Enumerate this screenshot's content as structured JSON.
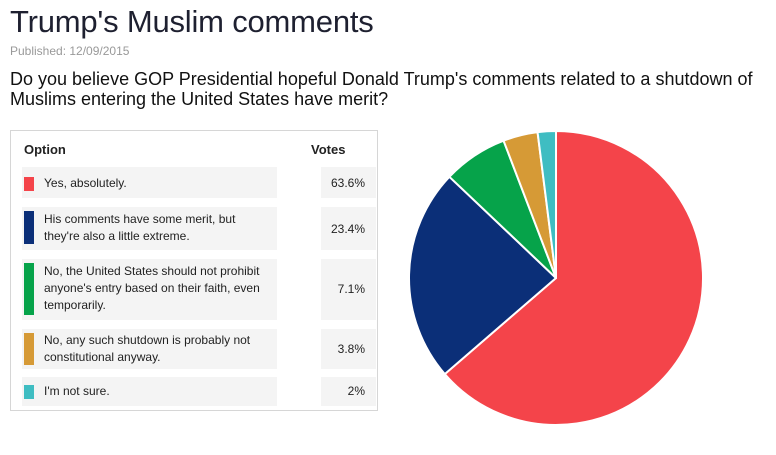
{
  "page": {
    "title": "Trump's Muslim comments",
    "published": "Published: 12/09/2015",
    "question": "Do you believe GOP Presidential hopeful Donald Trump's comments related to a shutdown of Muslims entering the United States have merit?"
  },
  "table": {
    "header_option": "Option",
    "header_votes": "Votes",
    "rows": [
      {
        "label": "Yes, absolutely.",
        "votes": "63.6%"
      },
      {
        "label": "His comments have some merit, but they're also a little extreme.",
        "votes": "23.4%"
      },
      {
        "label": "No, the United States should not prohibit anyone's entry based on their faith, even temporarily.",
        "votes": "7.1%"
      },
      {
        "label": "No, any such shutdown is probably not constitutional anyway.",
        "votes": "3.8%"
      },
      {
        "label": "I'm not sure.",
        "votes": "2%"
      }
    ]
  },
  "chart_data": {
    "type": "pie",
    "title": "",
    "categories": [
      "Yes, absolutely.",
      "His comments have some merit, but they're also a little extreme.",
      "No, the United States should not prohibit anyone's entry based on their faith, even temporarily.",
      "No, any such shutdown is probably not constitutional anyway.",
      "I'm not sure."
    ],
    "values": [
      63.6,
      23.4,
      7.1,
      3.8,
      2.0
    ],
    "colors": [
      "#f4444a",
      "#0b2f78",
      "#06a34a",
      "#d69a36",
      "#3fbdc2"
    ],
    "start": "top",
    "direction": "clockwise",
    "legend": "table-left"
  }
}
